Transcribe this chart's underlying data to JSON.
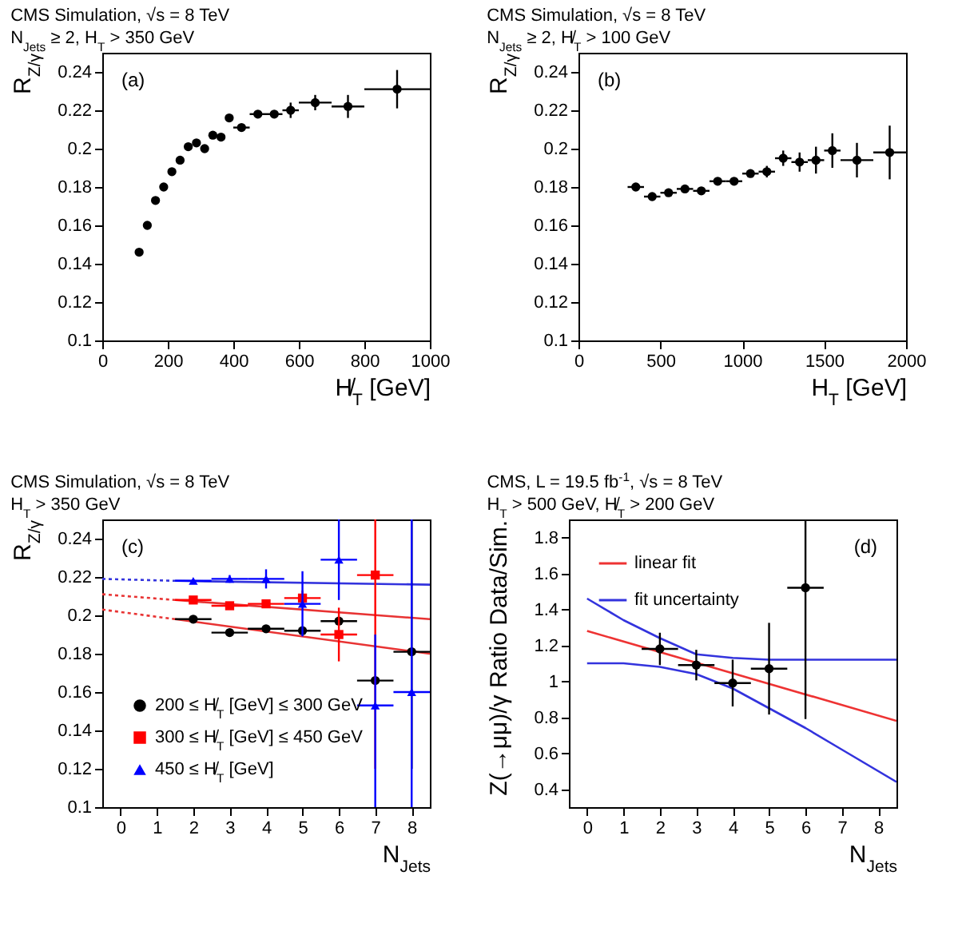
{
  "chart_data": [
    {
      "type": "scatter",
      "title": "CMS Simulation, √s = 8 TeV",
      "subtitle": "N$_{Jets}$ ≥ 2, H$_{T}$ > 350 GeV",
      "xlabel": "H̸$_{T}$ [GeV]",
      "ylabel": "R$_{Z/γ}$",
      "annotations": [
        "(a)"
      ],
      "xlim": [
        0,
        1000
      ],
      "xticks": [
        0,
        200,
        400,
        600,
        800,
        1000
      ],
      "ylim": [
        0.1,
        0.25
      ],
      "yticks": [
        0.1,
        0.12,
        0.14,
        0.16,
        0.18,
        0.2,
        0.22,
        0.24
      ],
      "series": [
        {
          "color": "#000000",
          "marker": "circle",
          "x": [
            112.5,
            137.5,
            162.5,
            187.5,
            212.5,
            237.5,
            262.5,
            287.5,
            312.5,
            337.5,
            362.5,
            387.5,
            425,
            475,
            525,
            575,
            650,
            750,
            900
          ],
          "values": [
            0.146,
            0.16,
            0.173,
            0.18,
            0.188,
            0.194,
            0.201,
            0.203,
            0.2,
            0.207,
            0.206,
            0.216,
            0.211,
            0.218,
            0.218,
            0.22,
            0.224,
            0.222,
            0.231
          ],
          "errors": [
            null,
            null,
            null,
            null,
            null,
            null,
            null,
            null,
            null,
            null,
            null,
            null,
            null,
            null,
            null,
            0.004,
            0.004,
            0.006,
            0.01
          ],
          "xerrors": [
            null,
            null,
            null,
            null,
            null,
            null,
            null,
            null,
            null,
            null,
            null,
            null,
            25,
            25,
            25,
            25,
            50,
            50,
            100
          ]
        }
      ]
    },
    {
      "type": "scatter",
      "title": "CMS Simulation, √s = 8 TeV",
      "subtitle": "N$_{Jets}$ ≥ 2, H̸$_{T}$ > 100 GeV",
      "xlabel": "H$_{T}$ [GeV]",
      "ylabel": "R$_{Z/γ}$",
      "annotations": [
        "(b)"
      ],
      "xlim": [
        0,
        2000
      ],
      "xticks": [
        0,
        500,
        1000,
        1500,
        2000
      ],
      "ylim": [
        0.1,
        0.25
      ],
      "yticks": [
        0.1,
        0.12,
        0.14,
        0.16,
        0.18,
        0.2,
        0.22,
        0.24
      ],
      "series": [
        {
          "color": "#000000",
          "marker": "circle",
          "x": [
            350,
            450,
            550,
            650,
            750,
            850,
            950,
            1050,
            1150,
            1250,
            1350,
            1450,
            1550,
            1700,
            1900
          ],
          "values": [
            0.18,
            0.175,
            0.177,
            0.179,
            0.178,
            0.183,
            0.183,
            0.187,
            0.188,
            0.195,
            0.193,
            0.194,
            0.199,
            0.194,
            0.198
          ],
          "errors": [
            null,
            null,
            null,
            null,
            null,
            null,
            null,
            null,
            0.003,
            0.004,
            0.005,
            0.007,
            0.009,
            0.009,
            0.014
          ],
          "xerrors": [
            50,
            50,
            50,
            50,
            50,
            50,
            50,
            50,
            50,
            50,
            50,
            50,
            50,
            100,
            100
          ]
        }
      ]
    },
    {
      "type": "scatter",
      "title": "CMS Simulation, √s = 8 TeV",
      "subtitle": "H$_{T}$ > 350 GeV",
      "xlabel": "N$_{Jets}$",
      "ylabel": "R$_{Z/γ}$",
      "annotations": [
        "(c)"
      ],
      "xlim": [
        -0.5,
        8.5
      ],
      "xticks": [
        0,
        1,
        2,
        3,
        4,
        5,
        6,
        7,
        8
      ],
      "ylim": [
        0.1,
        0.25
      ],
      "yticks": [
        0.1,
        0.12,
        0.14,
        0.16,
        0.18,
        0.2,
        0.22,
        0.24
      ],
      "legend": "bottom left",
      "series": [
        {
          "type": "line",
          "color": "#e83333",
          "line_style": "dotted",
          "x": [
            -0.5,
            1.5
          ],
          "values": [
            0.203,
            0.198
          ]
        },
        {
          "type": "line",
          "color": "#e83333",
          "line_style": "solid",
          "x": [
            1.5,
            8.5
          ],
          "values": [
            0.198,
            0.18
          ]
        },
        {
          "type": "line",
          "color": "#e83333",
          "line_style": "dotted",
          "x": [
            -0.5,
            1.5
          ],
          "values": [
            0.211,
            0.208
          ]
        },
        {
          "type": "line",
          "color": "#e83333",
          "line_style": "solid",
          "x": [
            1.5,
            8.5
          ],
          "values": [
            0.208,
            0.198
          ]
        },
        {
          "type": "line",
          "color": "#3333dd",
          "line_style": "dotted",
          "x": [
            -0.5,
            1.5
          ],
          "values": [
            0.219,
            0.218
          ]
        },
        {
          "type": "line",
          "color": "#3333dd",
          "line_style": "solid",
          "x": [
            1.5,
            8.5
          ],
          "values": [
            0.218,
            0.216
          ]
        },
        {
          "name": "200 ≤ H̸$_{T}$ [GeV] ≤ 300 GeV",
          "color": "#000000",
          "marker": "circle",
          "x": [
            2,
            3,
            4,
            5,
            6,
            7,
            8
          ],
          "values": [
            0.198,
            0.191,
            0.193,
            0.192,
            0.197,
            0.166,
            0.181
          ],
          "errors": [
            null,
            null,
            null,
            null,
            null,
            null,
            [
              0.12,
              0.25
            ]
          ],
          "xerrors": [
            0.5,
            0.5,
            0.5,
            0.5,
            0.5,
            0.5,
            0.5
          ]
        },
        {
          "name": "300 ≤ H̸$_{T}$ [GeV] ≤ 450 GeV",
          "color": "#ff0000",
          "marker": "square",
          "x": [
            2,
            3,
            4,
            5,
            6,
            7
          ],
          "values": [
            0.208,
            0.205,
            0.206,
            0.209,
            0.19,
            0.221
          ],
          "errors": [
            null,
            null,
            0.002,
            0.004,
            0.014,
            [
              0.12,
              0.25
            ]
          ],
          "xerrors": [
            0.5,
            0.5,
            0.5,
            0.5,
            0.5,
            0.5
          ]
        },
        {
          "name": "450 ≤ H̸$_{T}$ [GeV]",
          "color": "#0000ff",
          "marker": "triangle",
          "x": [
            2,
            3,
            4,
            5,
            6,
            7,
            8
          ],
          "values": [
            0.218,
            0.219,
            0.219,
            0.206,
            0.229,
            0.153,
            0.16
          ],
          "errors": [
            null,
            0.002,
            0.005,
            0.017,
            0.021,
            [
              0.1,
              0.19
            ],
            [
              0.1,
              0.25
            ]
          ],
          "xerrors": [
            0.5,
            0.5,
            0.5,
            0.5,
            0.5,
            0.5,
            0.5
          ]
        }
      ]
    },
    {
      "type": "scatter",
      "title": "CMS, L = 19.5 fb$^{-1}$, √s = 8 TeV",
      "subtitle": "H$_{T}$ > 500 GeV, H̸$_{T}$ > 200 GeV",
      "xlabel": "N$_{Jets}$",
      "ylabel": "Z(→μμ)/γ Ratio Data/Sim.",
      "annotations": [
        "(d)"
      ],
      "xlim": [
        -0.5,
        8.5
      ],
      "xticks": [
        0,
        1,
        2,
        3,
        4,
        5,
        6,
        7,
        8
      ],
      "ylim": [
        0.3,
        1.9
      ],
      "yticks": [
        0.4,
        0.6,
        0.8,
        1,
        1.2,
        1.4,
        1.6,
        1.8
      ],
      "legend": "top left",
      "series": [
        {
          "type": "line",
          "name": "linear fit",
          "color": "#ee3333",
          "line_style": "solid",
          "x": [
            0,
            8.5
          ],
          "values": [
            1.28,
            0.78
          ]
        },
        {
          "type": "line",
          "name": "fit uncertainty",
          "color": "#3333dd",
          "line_style": "solid",
          "x": [
            0,
            1,
            2,
            3,
            4,
            5,
            6,
            8.5
          ],
          "values": [
            1.46,
            1.34,
            1.24,
            1.15,
            1.13,
            1.12,
            1.12,
            1.12
          ]
        },
        {
          "type": "line",
          "color": "#3333dd",
          "line_style": "solid",
          "x": [
            0,
            1,
            2,
            3,
            4,
            5,
            6,
            7,
            8.5
          ],
          "values": [
            1.1,
            1.1,
            1.08,
            1.04,
            0.96,
            0.85,
            0.74,
            0.62,
            0.44
          ]
        },
        {
          "color": "#000000",
          "marker": "circle",
          "x": [
            2,
            3,
            4,
            5,
            6
          ],
          "values": [
            1.18,
            1.09,
            0.99,
            1.07,
            1.52
          ],
          "errors": [
            0.09,
            0.085,
            0.13,
            0.255,
            [
              0.79,
              1.9
            ]
          ],
          "xerrors": [
            0.5,
            0.5,
            0.5,
            0.5,
            0.5
          ]
        }
      ]
    }
  ]
}
